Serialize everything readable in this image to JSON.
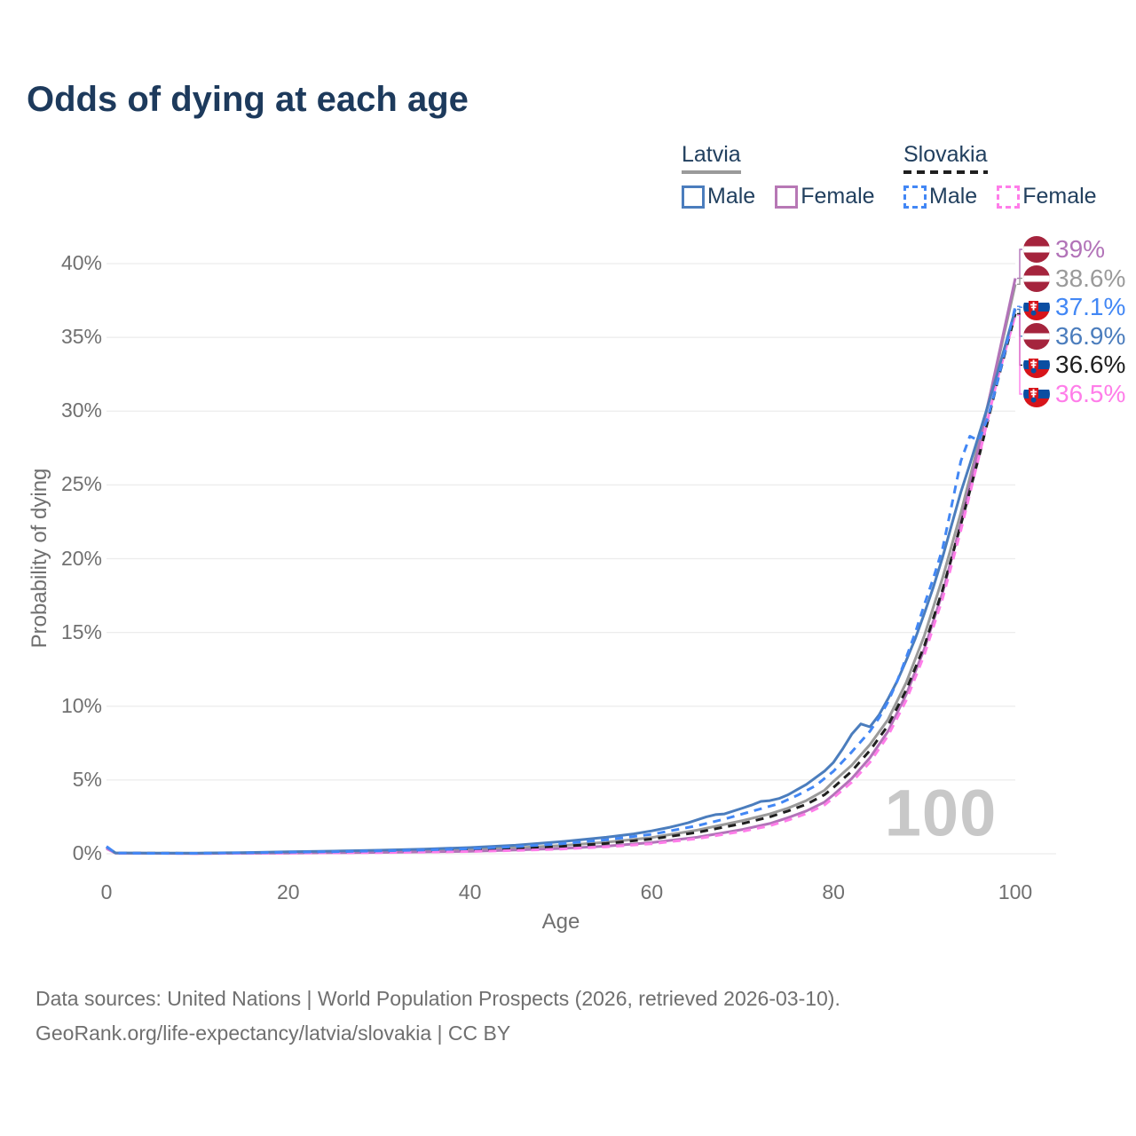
{
  "title": "Odds of dying at each age",
  "watermark": "100",
  "legend": {
    "groups": [
      {
        "name": "Latvia",
        "underline_style": "solid",
        "underline_color": "#9a9a9a",
        "items": [
          {
            "label": "Male",
            "color": "#4b7dbd",
            "dashed": false
          },
          {
            "label": "Female",
            "color": "#b778b5",
            "dashed": false
          }
        ]
      },
      {
        "name": "Slovakia",
        "underline_style": "dashed",
        "underline_color": "#1f1f1f",
        "items": [
          {
            "label": "Male",
            "color": "#4287f5",
            "dashed": true
          },
          {
            "label": "Female",
            "color": "#ff7de9",
            "dashed": true
          }
        ]
      }
    ]
  },
  "chart_data": {
    "type": "line",
    "title": "Odds of dying at each age",
    "xlabel": "Age",
    "ylabel": "Probability of dying",
    "xlim": [
      0,
      100
    ],
    "ylim": [
      0,
      40
    ],
    "x_ticks": [
      0,
      20,
      40,
      60,
      80,
      100
    ],
    "y_ticks": [
      0,
      5,
      10,
      15,
      20,
      25,
      30,
      35,
      40
    ],
    "y_tick_suffix": "%",
    "grid": "horizontal",
    "legend_position": "top-right",
    "series": [
      {
        "name": "Latvia",
        "sex": "both",
        "color": "#9a9a9a",
        "dashed": false,
        "points": [
          [
            0,
            0.4
          ],
          [
            1,
            0.05
          ],
          [
            10,
            0.03
          ],
          [
            20,
            0.1
          ],
          [
            30,
            0.16
          ],
          [
            40,
            0.29
          ],
          [
            45,
            0.4
          ],
          [
            50,
            0.56
          ],
          [
            55,
            0.78
          ],
          [
            60,
            1.1
          ],
          [
            65,
            1.6
          ],
          [
            70,
            2.25
          ],
          [
            73,
            2.7
          ],
          [
            75,
            3.1
          ],
          [
            77,
            3.6
          ],
          [
            79,
            4.3
          ],
          [
            80,
            4.9
          ],
          [
            82,
            6.0
          ],
          [
            84,
            7.4
          ],
          [
            86,
            9.1
          ],
          [
            88,
            11.6
          ],
          [
            90,
            14.8
          ],
          [
            92,
            18.7
          ],
          [
            94,
            23.1
          ],
          [
            96,
            27.9
          ],
          [
            98,
            33.1
          ],
          [
            100,
            38.6
          ]
        ]
      },
      {
        "name": "Latvia Female",
        "sex": "female",
        "color": "#b273b8",
        "dashed": false,
        "points": [
          [
            0,
            0.35
          ],
          [
            1,
            0.04
          ],
          [
            10,
            0.02
          ],
          [
            20,
            0.05
          ],
          [
            30,
            0.09
          ],
          [
            40,
            0.17
          ],
          [
            45,
            0.25
          ],
          [
            50,
            0.36
          ],
          [
            55,
            0.52
          ],
          [
            60,
            0.76
          ],
          [
            65,
            1.12
          ],
          [
            70,
            1.65
          ],
          [
            73,
            2.05
          ],
          [
            75,
            2.45
          ],
          [
            77,
            2.9
          ],
          [
            79,
            3.5
          ],
          [
            80,
            4.0
          ],
          [
            82,
            5.1
          ],
          [
            84,
            6.5
          ],
          [
            86,
            8.3
          ],
          [
            88,
            10.8
          ],
          [
            90,
            13.9
          ],
          [
            92,
            17.7
          ],
          [
            94,
            22.4
          ],
          [
            96,
            27.6
          ],
          [
            98,
            33.3
          ],
          [
            100,
            39.0
          ]
        ]
      },
      {
        "name": "Slovakia",
        "sex": "both",
        "color": "#1f1f1f",
        "dashed": true,
        "points": [
          [
            0,
            0.45
          ],
          [
            1,
            0.05
          ],
          [
            10,
            0.03
          ],
          [
            20,
            0.09
          ],
          [
            30,
            0.15
          ],
          [
            40,
            0.25
          ],
          [
            45,
            0.35
          ],
          [
            50,
            0.5
          ],
          [
            55,
            0.7
          ],
          [
            60,
            1.0
          ],
          [
            65,
            1.45
          ],
          [
            70,
            2.05
          ],
          [
            73,
            2.5
          ],
          [
            75,
            2.9
          ],
          [
            77,
            3.35
          ],
          [
            79,
            4.0
          ],
          [
            80,
            4.5
          ],
          [
            82,
            5.6
          ],
          [
            84,
            7.0
          ],
          [
            86,
            8.7
          ],
          [
            88,
            11.1
          ],
          [
            90,
            14.1
          ],
          [
            92,
            17.9
          ],
          [
            94,
            22.3
          ],
          [
            96,
            26.9
          ],
          [
            98,
            31.9
          ],
          [
            100,
            36.6
          ]
        ]
      },
      {
        "name": "Slovakia Female",
        "sex": "female",
        "color": "#ff7de9",
        "dashed": true,
        "points": [
          [
            0,
            0.4
          ],
          [
            1,
            0.04
          ],
          [
            10,
            0.02
          ],
          [
            20,
            0.05
          ],
          [
            30,
            0.08
          ],
          [
            40,
            0.15
          ],
          [
            45,
            0.22
          ],
          [
            50,
            0.32
          ],
          [
            55,
            0.47
          ],
          [
            60,
            0.68
          ],
          [
            65,
            1.02
          ],
          [
            70,
            1.52
          ],
          [
            73,
            1.9
          ],
          [
            75,
            2.28
          ],
          [
            77,
            2.72
          ],
          [
            79,
            3.3
          ],
          [
            80,
            3.8
          ],
          [
            82,
            4.85
          ],
          [
            84,
            6.2
          ],
          [
            86,
            8.0
          ],
          [
            88,
            10.4
          ],
          [
            90,
            13.5
          ],
          [
            92,
            17.3
          ],
          [
            94,
            21.9
          ],
          [
            96,
            26.9
          ],
          [
            98,
            32.1
          ],
          [
            100,
            36.5
          ]
        ]
      },
      {
        "name": "Latvia Male",
        "sex": "male",
        "color": "#4b7dbd",
        "dashed": false,
        "points": [
          [
            0,
            0.45
          ],
          [
            1,
            0.06
          ],
          [
            5,
            0.04
          ],
          [
            10,
            0.04
          ],
          [
            15,
            0.08
          ],
          [
            20,
            0.13
          ],
          [
            25,
            0.18
          ],
          [
            30,
            0.24
          ],
          [
            35,
            0.32
          ],
          [
            40,
            0.42
          ],
          [
            45,
            0.58
          ],
          [
            50,
            0.82
          ],
          [
            55,
            1.12
          ],
          [
            58,
            1.35
          ],
          [
            60,
            1.55
          ],
          [
            62,
            1.8
          ],
          [
            64,
            2.1
          ],
          [
            66,
            2.5
          ],
          [
            67,
            2.65
          ],
          [
            68,
            2.7
          ],
          [
            70,
            3.1
          ],
          [
            71,
            3.3
          ],
          [
            72,
            3.55
          ],
          [
            73,
            3.6
          ],
          [
            74,
            3.75
          ],
          [
            75,
            4.0
          ],
          [
            76,
            4.35
          ],
          [
            77,
            4.7
          ],
          [
            78,
            5.15
          ],
          [
            79,
            5.6
          ],
          [
            80,
            6.2
          ],
          [
            81,
            7.1
          ],
          [
            82,
            8.1
          ],
          [
            83,
            8.8
          ],
          [
            84,
            8.6
          ],
          [
            85,
            9.4
          ],
          [
            86,
            10.5
          ],
          [
            87,
            11.7
          ],
          [
            88,
            13.1
          ],
          [
            89,
            14.6
          ],
          [
            90,
            16.3
          ],
          [
            91,
            18.1
          ],
          [
            92,
            20.1
          ],
          [
            93,
            22.3
          ],
          [
            94,
            24.5
          ],
          [
            95,
            26.4
          ],
          [
            96,
            28.4
          ],
          [
            97,
            30.4
          ],
          [
            98,
            32.5
          ],
          [
            99,
            34.7
          ],
          [
            100,
            36.9
          ]
        ]
      },
      {
        "name": "Slovakia Male",
        "sex": "male",
        "color": "#4287f5",
        "dashed": true,
        "points": [
          [
            0,
            0.5
          ],
          [
            1,
            0.05
          ],
          [
            5,
            0.03
          ],
          [
            10,
            0.03
          ],
          [
            15,
            0.06
          ],
          [
            20,
            0.1
          ],
          [
            25,
            0.14
          ],
          [
            30,
            0.19
          ],
          [
            35,
            0.26
          ],
          [
            40,
            0.34
          ],
          [
            45,
            0.48
          ],
          [
            50,
            0.68
          ],
          [
            55,
            0.95
          ],
          [
            60,
            1.32
          ],
          [
            65,
            1.9
          ],
          [
            68,
            2.35
          ],
          [
            70,
            2.7
          ],
          [
            72,
            3.05
          ],
          [
            74,
            3.4
          ],
          [
            76,
            3.95
          ],
          [
            78,
            4.6
          ],
          [
            80,
            5.6
          ],
          [
            82,
            6.9
          ],
          [
            84,
            8.3
          ],
          [
            85,
            9.2
          ],
          [
            86,
            10.3
          ],
          [
            87,
            11.7
          ],
          [
            88,
            13.3
          ],
          [
            89,
            15.0
          ],
          [
            90,
            16.9
          ],
          [
            91,
            18.7
          ],
          [
            92,
            20.7
          ],
          [
            93,
            23.6
          ],
          [
            94,
            26.6
          ],
          [
            95,
            28.3
          ],
          [
            96,
            28.0
          ],
          [
            97,
            29.6
          ],
          [
            98,
            31.9
          ],
          [
            99,
            34.4
          ],
          [
            100,
            37.1
          ]
        ]
      }
    ],
    "end_labels": [
      {
        "text": "39%",
        "value": 39.0,
        "color": "#b273b8",
        "flag": "latvia",
        "series": "Latvia Female"
      },
      {
        "text": "38.6%",
        "value": 38.6,
        "color": "#9a9a9a",
        "flag": "latvia",
        "series": "Latvia"
      },
      {
        "text": "37.1%",
        "value": 37.1,
        "color": "#4287f5",
        "flag": "slovakia",
        "series": "Slovakia Male"
      },
      {
        "text": "36.9%",
        "value": 36.9,
        "color": "#4b7dbd",
        "flag": "latvia",
        "series": "Latvia Male"
      },
      {
        "text": "36.6%",
        "value": 36.6,
        "color": "#1f1f1f",
        "flag": "slovakia",
        "series": "Slovakia"
      },
      {
        "text": "36.5%",
        "value": 36.5,
        "color": "#ff7de9",
        "flag": "slovakia",
        "series": "Slovakia Female"
      }
    ],
    "annotations": [
      {
        "text": "100",
        "role": "hover-age-watermark"
      }
    ]
  },
  "flag_colors": {
    "latvia_red": "#A5243D",
    "slovakia_white": "#ffffff",
    "slovakia_blue": "#0B4EA2",
    "slovakia_red": "#D7141A"
  },
  "footer": {
    "line1": "Data sources: United Nations | World Population Prospects (2026, retrieved 2026-03-10).",
    "line2": "GeoRank.org/life-expectancy/latvia/slovakia | CC BY"
  }
}
